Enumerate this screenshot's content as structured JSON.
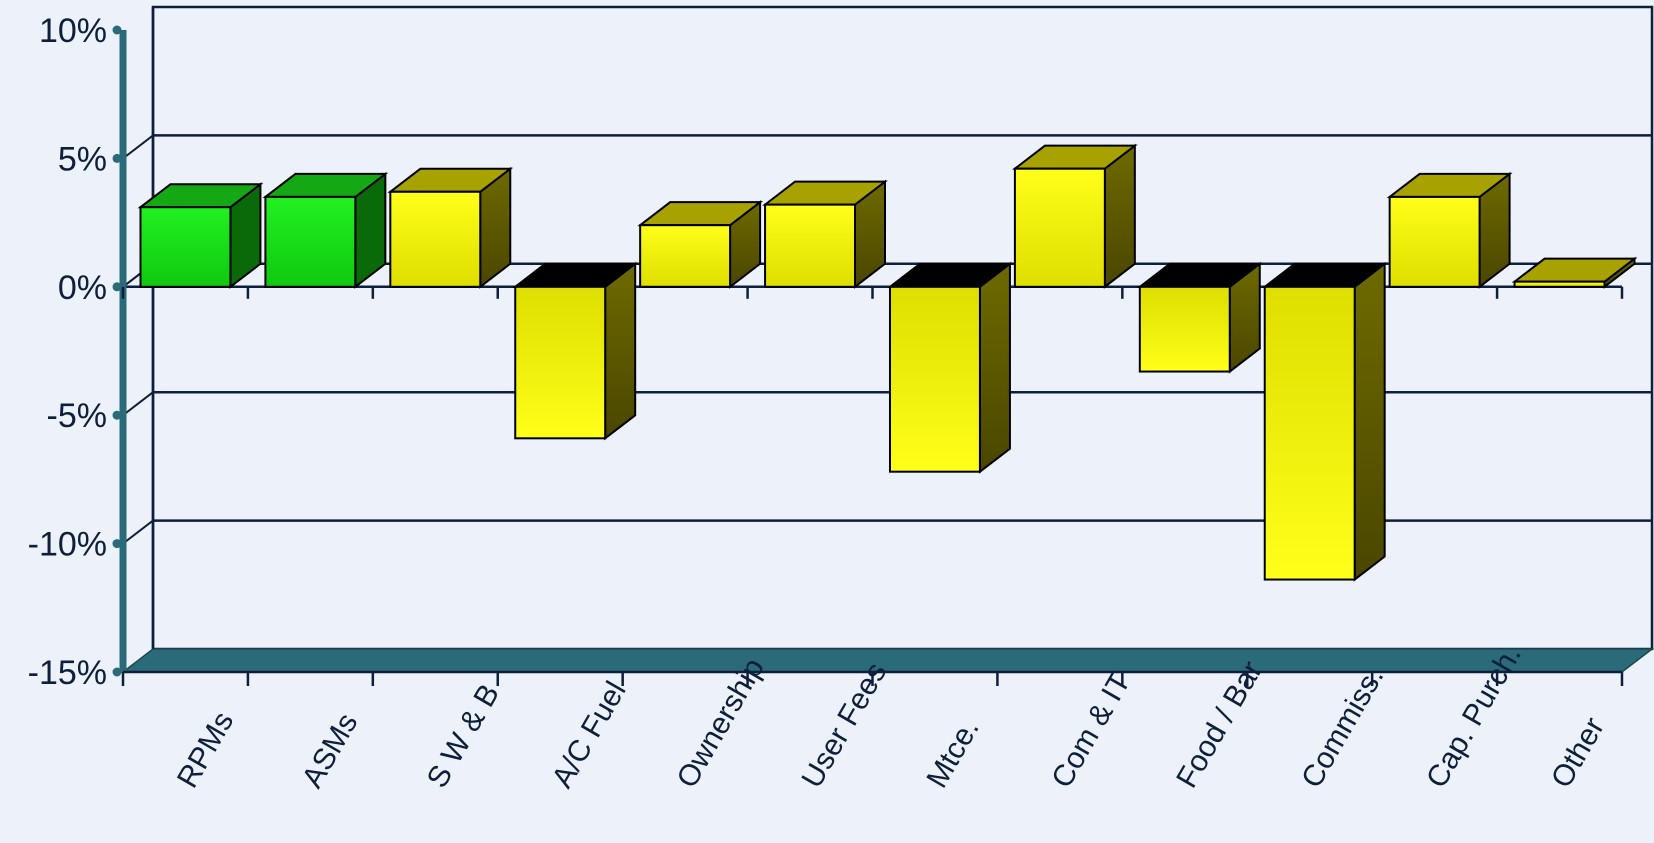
{
  "chart_data": {
    "type": "bar",
    "style": "3d",
    "categories": [
      "RPMs",
      "ASMs",
      "S W & B",
      "A/C Fuel",
      "Ownership",
      "User Fees",
      "Mtce.",
      "Com & IT",
      "Food / Bar",
      "Commiss.",
      "Cap. Purch.",
      "Other"
    ],
    "values": [
      3.1,
      3.5,
      3.7,
      -5.9,
      2.4,
      3.2,
      -7.2,
      4.6,
      -3.3,
      -11.4,
      3.5,
      0.2
    ],
    "bar_colors": [
      "#22dd22",
      "#22dd22",
      "#f2f200",
      "#f2f200",
      "#f2f200",
      "#f2f200",
      "#f2f200",
      "#f2f200",
      "#f2f200",
      "#f2f200",
      "#f2f200",
      "#f2f200"
    ],
    "yticks": [
      "10%",
      "5%",
      "0%",
      "-5%",
      "-10%",
      "-15%"
    ],
    "ylim": [
      -15,
      10
    ],
    "grid": true,
    "axis_color": "#2b6a78",
    "background": "#edf2fa"
  }
}
